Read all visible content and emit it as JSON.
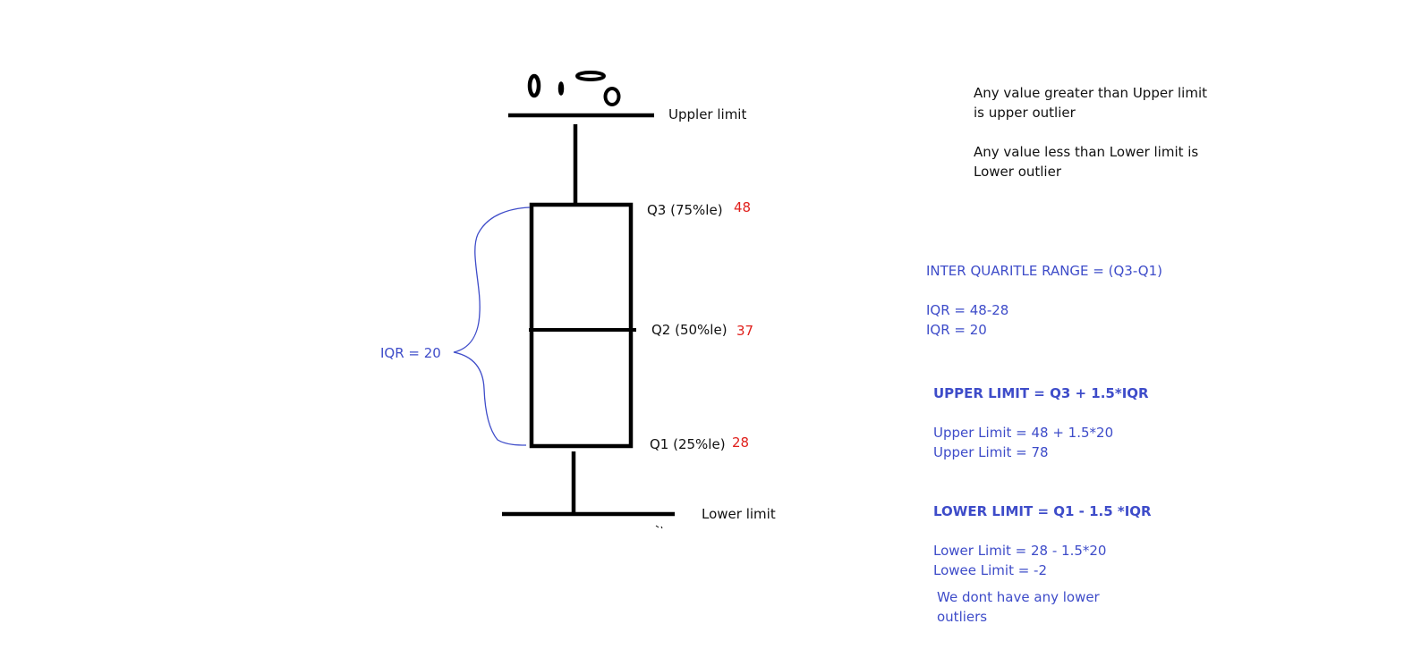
{
  "colors": {
    "ink": "#000000",
    "label": "#111111",
    "value": "#e0201c",
    "note": "#3e4cc9"
  },
  "box_plot": {
    "upper_limit_label": "Uppler limit",
    "lower_limit_label": "Lower limit",
    "q3_label": "Q3 (75%le)",
    "q3_value": "48",
    "q2_label": "Q2 (50%le)",
    "q2_value": "37",
    "q1_label": "Q1 (25%le)",
    "q1_value": "28",
    "iqr_label": "IQR = 20"
  },
  "outlier_rules": {
    "upper_line1": "Any value greater than Upper limit",
    "upper_line2": "is upper outlier",
    "lower_line1": "Any value less than Lower limit is",
    "lower_line2": "Lower outlier"
  },
  "calculations": {
    "iqr_formula": "INTER QUARITLE RANGE = (Q3-Q1)",
    "iqr_step1": "IQR = 48-28",
    "iqr_step2": "IQR = 20",
    "upper_formula": "UPPER LIMIT = Q3 + 1.5*IQR",
    "upper_step1": "Upper Limit = 48 + 1.5*20",
    "upper_step2": "Upper Limit = 78",
    "lower_formula": "LOWER LIMIT = Q1 - 1.5 *IQR",
    "lower_step1": "Lower Limit = 28 - 1.5*20",
    "lower_step2": "Lowee Limit = -2",
    "conclusion_line1": "We dont have any lower",
    "conclusion_line2": "outliers"
  }
}
